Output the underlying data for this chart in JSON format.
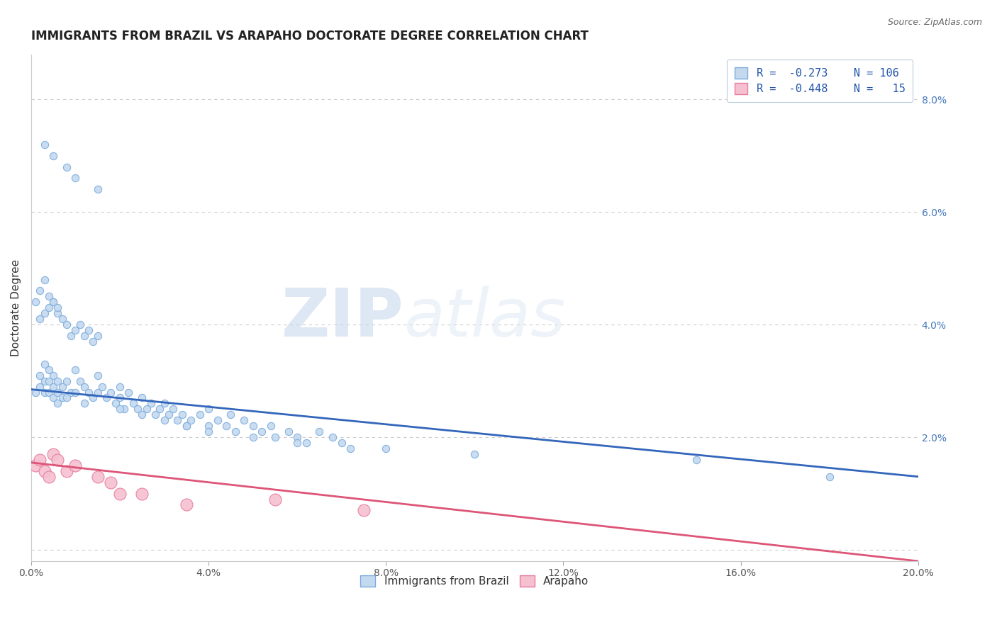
{
  "title": "IMMIGRANTS FROM BRAZIL VS ARAPAHO DOCTORATE DEGREE CORRELATION CHART",
  "source": "Source: ZipAtlas.com",
  "ylabel": "Doctorate Degree",
  "xlim": [
    0.0,
    0.2
  ],
  "ylim": [
    -0.002,
    0.088
  ],
  "grid_color": "#cccccc",
  "background_color": "#ffffff",
  "blue_color": "#7aabde",
  "blue_fill": "#c5d9ee",
  "pink_color": "#e87a9f",
  "pink_fill": "#f5c0d0",
  "line_blue": "#3366bb",
  "line_pink": "#dd5577",
  "brazil_size": 55,
  "arapaho_size": 150,
  "title_fontsize": 12,
  "axis_label_fontsize": 11,
  "tick_fontsize": 10,
  "legend_fontsize": 11,
  "brazil_x": [
    0.001,
    0.002,
    0.002,
    0.003,
    0.003,
    0.003,
    0.004,
    0.004,
    0.004,
    0.005,
    0.005,
    0.005,
    0.006,
    0.006,
    0.006,
    0.007,
    0.007,
    0.008,
    0.008,
    0.009,
    0.01,
    0.01,
    0.011,
    0.012,
    0.012,
    0.013,
    0.014,
    0.015,
    0.015,
    0.016,
    0.017,
    0.018,
    0.019,
    0.02,
    0.02,
    0.021,
    0.022,
    0.023,
    0.024,
    0.025,
    0.026,
    0.027,
    0.028,
    0.029,
    0.03,
    0.031,
    0.032,
    0.033,
    0.034,
    0.035,
    0.036,
    0.038,
    0.04,
    0.04,
    0.042,
    0.044,
    0.045,
    0.046,
    0.048,
    0.05,
    0.052,
    0.054,
    0.055,
    0.058,
    0.06,
    0.062,
    0.065,
    0.068,
    0.07,
    0.072,
    0.001,
    0.002,
    0.003,
    0.004,
    0.005,
    0.006,
    0.007,
    0.008,
    0.009,
    0.01,
    0.011,
    0.012,
    0.013,
    0.014,
    0.015,
    0.002,
    0.003,
    0.004,
    0.005,
    0.006,
    0.02,
    0.025,
    0.03,
    0.035,
    0.04,
    0.05,
    0.06,
    0.08,
    0.1,
    0.15,
    0.003,
    0.005,
    0.008,
    0.01,
    0.015,
    0.18
  ],
  "brazil_y": [
    0.028,
    0.031,
    0.029,
    0.033,
    0.03,
    0.028,
    0.032,
    0.03,
    0.028,
    0.031,
    0.029,
    0.027,
    0.03,
    0.028,
    0.026,
    0.029,
    0.027,
    0.03,
    0.027,
    0.028,
    0.032,
    0.028,
    0.03,
    0.029,
    0.026,
    0.028,
    0.027,
    0.031,
    0.028,
    0.029,
    0.027,
    0.028,
    0.026,
    0.029,
    0.027,
    0.025,
    0.028,
    0.026,
    0.025,
    0.027,
    0.025,
    0.026,
    0.024,
    0.025,
    0.026,
    0.024,
    0.025,
    0.023,
    0.024,
    0.022,
    0.023,
    0.024,
    0.022,
    0.025,
    0.023,
    0.022,
    0.024,
    0.021,
    0.023,
    0.022,
    0.021,
    0.022,
    0.02,
    0.021,
    0.02,
    0.019,
    0.021,
    0.02,
    0.019,
    0.018,
    0.044,
    0.041,
    0.042,
    0.043,
    0.044,
    0.042,
    0.041,
    0.04,
    0.038,
    0.039,
    0.04,
    0.038,
    0.039,
    0.037,
    0.038,
    0.046,
    0.048,
    0.045,
    0.044,
    0.043,
    0.025,
    0.024,
    0.023,
    0.022,
    0.021,
    0.02,
    0.019,
    0.018,
    0.017,
    0.016,
    0.072,
    0.07,
    0.068,
    0.066,
    0.064,
    0.013
  ],
  "arapaho_x": [
    0.001,
    0.002,
    0.003,
    0.004,
    0.005,
    0.006,
    0.008,
    0.01,
    0.015,
    0.018,
    0.02,
    0.025,
    0.035,
    0.055,
    0.075
  ],
  "arapaho_y": [
    0.015,
    0.016,
    0.014,
    0.013,
    0.017,
    0.016,
    0.014,
    0.015,
    0.013,
    0.012,
    0.01,
    0.01,
    0.008,
    0.009,
    0.007
  ],
  "brazil_line_x0": 0.0,
  "brazil_line_x1": 0.2,
  "brazil_line_y0": 0.0285,
  "brazil_line_y1": 0.013,
  "arapaho_line_x0": 0.0,
  "arapaho_line_x1": 0.2,
  "arapaho_line_y0": 0.0155,
  "arapaho_line_y1": -0.002
}
